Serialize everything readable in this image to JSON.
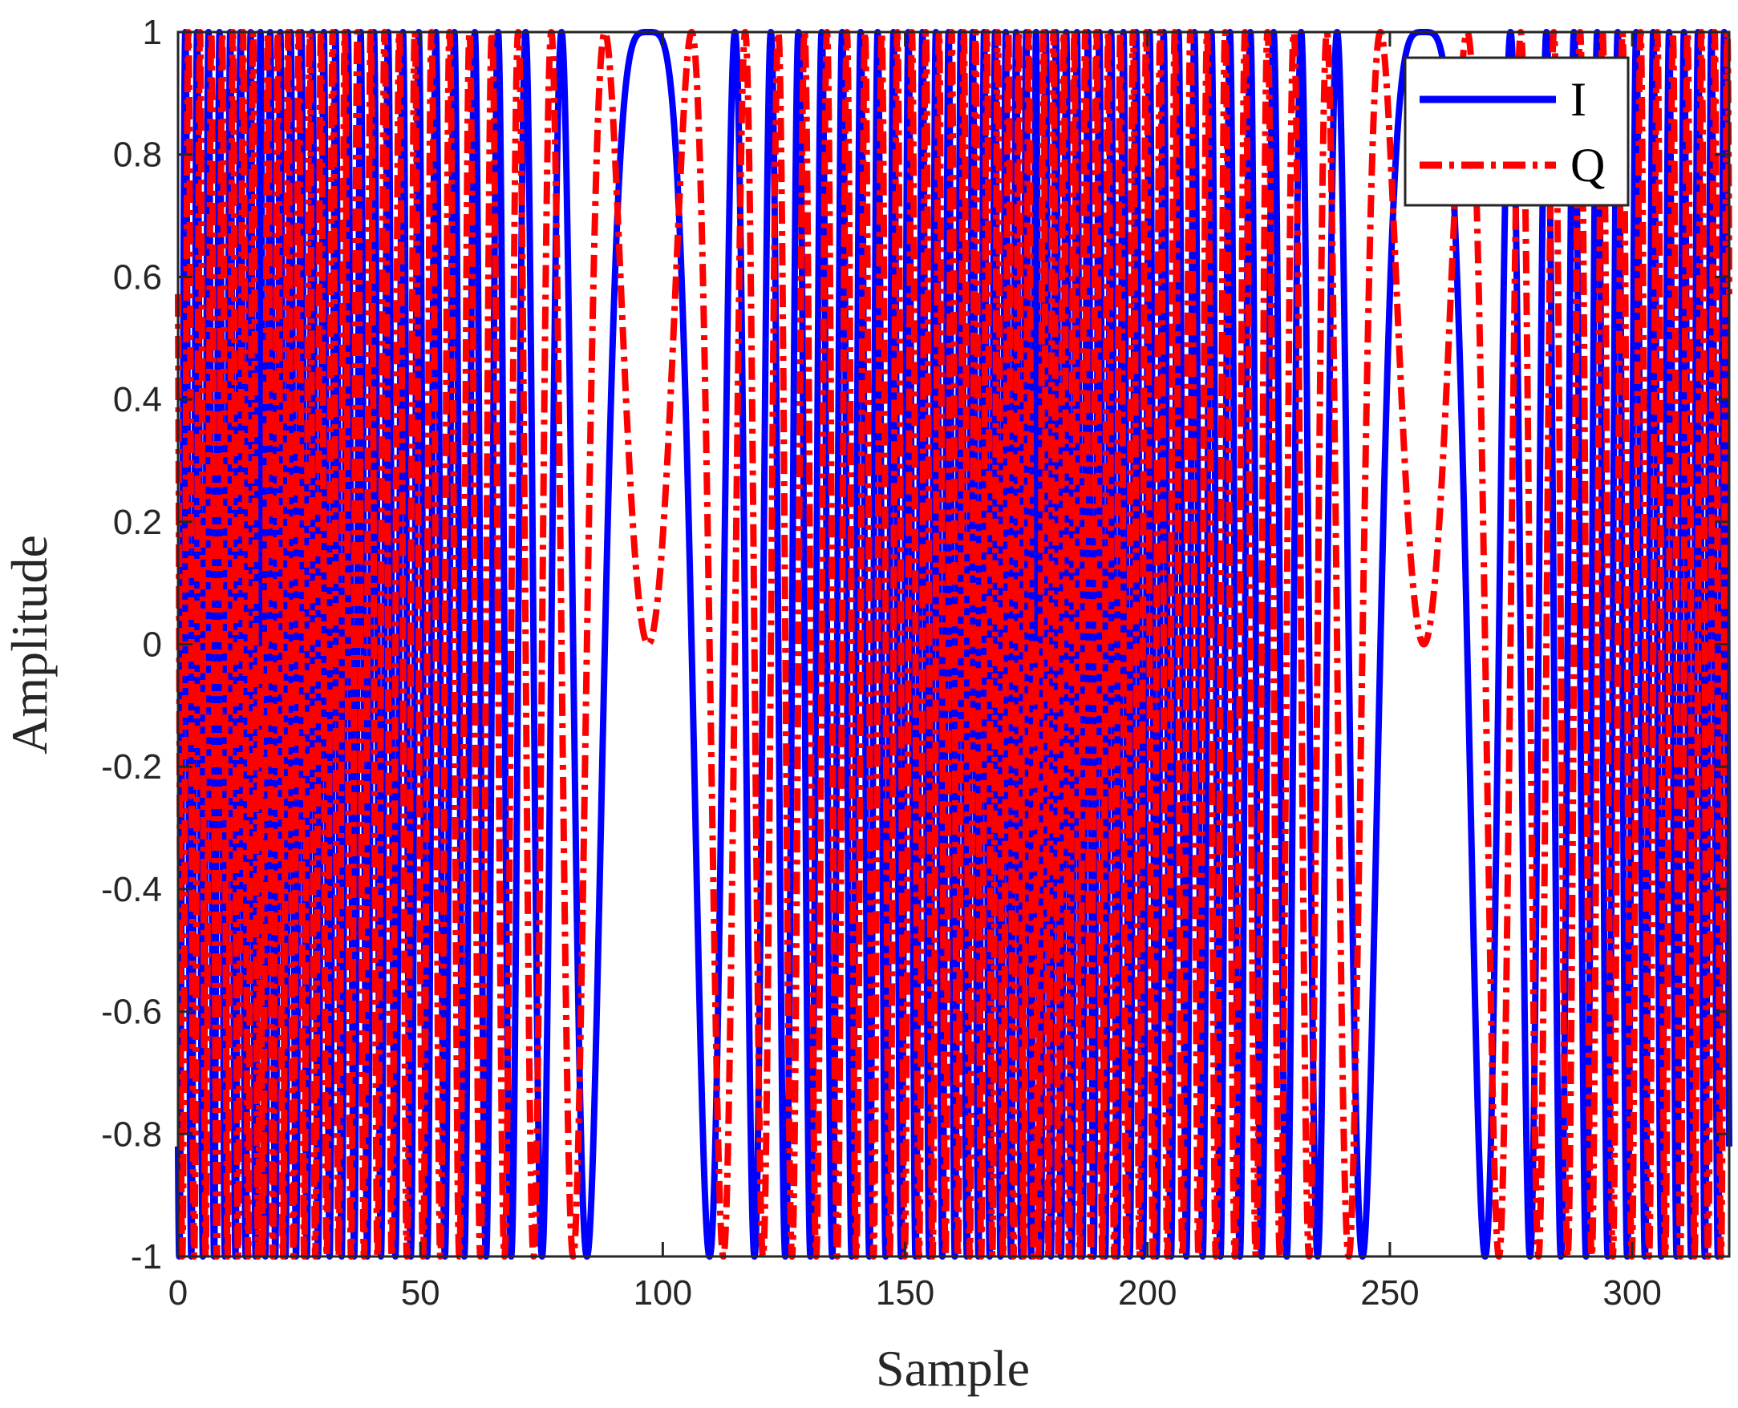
{
  "chart_data": {
    "type": "line",
    "xlabel": "Sample",
    "ylabel": "Amplitude",
    "xlim": [
      0,
      320
    ],
    "ylim": [
      -1,
      1
    ],
    "xticks": [
      0,
      50,
      100,
      150,
      200,
      250,
      300
    ],
    "yticks": [
      -1,
      -0.8,
      -0.6,
      -0.4,
      -0.2,
      0,
      0.2,
      0.4,
      0.6,
      0.8,
      1
    ],
    "xtick_labels": [
      "0",
      "50",
      "100",
      "150",
      "200",
      "250",
      "300"
    ],
    "ytick_labels": [
      "-1",
      "-0.8",
      "-0.6",
      "-0.4",
      "-0.2",
      "0",
      "0.2",
      "0.4",
      "0.6",
      "0.8",
      "1"
    ],
    "grid": false,
    "legend_location": "top-right",
    "signal": {
      "kind": "chirp",
      "samples": 320,
      "period_samples": 160,
      "center_samples": [
        97,
        257
      ]
    },
    "series": [
      {
        "name": "I",
        "color": "#0000ff",
        "style": "solid"
      },
      {
        "name": "Q",
        "color": "#ff0000",
        "style": "dash-dot"
      }
    ]
  }
}
